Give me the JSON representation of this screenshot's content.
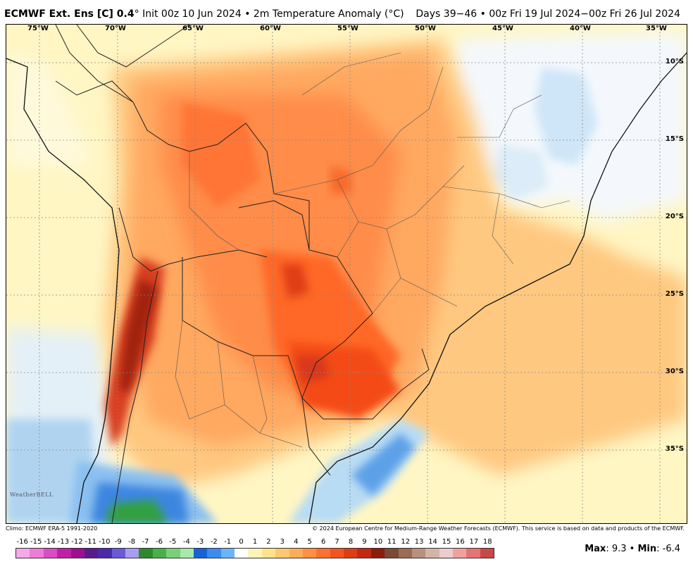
{
  "header": {
    "model_name": "ECMWF Ext. Ens [C] 0.4",
    "degree_symbol": "°",
    "init_text": " Init 00z 10 Jun 2024 • 2m Temperature Anomaly (°C)",
    "valid_text": "Days 39−46 • 00z Fri 19 Jul 2024−00z Fri 26 Jul 2024"
  },
  "map": {
    "lon_labels": [
      "75°W",
      "70°W",
      "65°W",
      "60°W",
      "55°W",
      "50°W",
      "45°W",
      "40°W",
      "35°W"
    ],
    "lat_labels": [
      "10°S",
      "15°S",
      "20°S",
      "25°S",
      "30°S",
      "35°S"
    ],
    "logo_text": "WeatherBELL"
  },
  "footer": {
    "climo": "Climo: ECMWF ERA-5 1991-2020",
    "copyright": "© 2024 European Centre for Medium-Range Weather Forecasts (ECMWF). This service is based on data and products of the ECMWF.",
    "max_label": "Max",
    "max_value": ": 9.3 • ",
    "min_label": "Min",
    "min_value": ": -6.4"
  },
  "colorbar": {
    "labels": [
      "-16",
      "-15",
      "-14",
      "-13",
      "-12",
      "-11",
      "-10",
      "-9",
      "-8",
      "-7",
      "-6",
      "-5",
      "-4",
      "-3",
      "-2",
      "-1",
      "0",
      "1",
      "2",
      "3",
      "4",
      "5",
      "6",
      "7",
      "8",
      "9",
      "10",
      "11",
      "12",
      "13",
      "14",
      "15",
      "16",
      "17",
      "18"
    ],
    "colors": [
      "#f7a8e8",
      "#ec7cd8",
      "#dc4cc4",
      "#c020a8",
      "#9c1090",
      "#5a1a8c",
      "#4a2aa8",
      "#6a5ad8",
      "#a89cf0",
      "#2c8a2c",
      "#48b048",
      "#78d078",
      "#a8e8a8",
      "#1464d8",
      "#3c8cf0",
      "#6cb4f8",
      "#ffffff",
      "#fff4b8",
      "#ffe28c",
      "#ffc870",
      "#ffac58",
      "#ff9040",
      "#ff7030",
      "#f45420",
      "#e03c14",
      "#c42810",
      "#8c1c0c",
      "#7a4a34",
      "#9c6c54",
      "#b8907c",
      "#d4b4a4",
      "#eccccc",
      "#f0a0a0",
      "#e47474",
      "#c84848"
    ]
  }
}
